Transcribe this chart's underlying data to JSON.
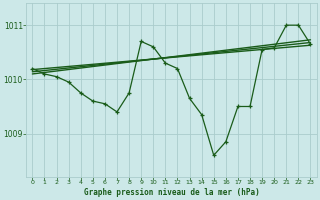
{
  "title": "Graphe pression niveau de la mer (hPa)",
  "bg_color": "#cce8e8",
  "grid_color": "#aacccc",
  "line_color": "#1a5c1a",
  "x_ticks": [
    0,
    1,
    2,
    3,
    4,
    5,
    6,
    7,
    8,
    9,
    10,
    11,
    12,
    13,
    14,
    15,
    16,
    17,
    18,
    19,
    20,
    21,
    22,
    23
  ],
  "y_ticks": [
    1009,
    1010,
    1011
  ],
  "ylim": [
    1008.2,
    1011.4
  ],
  "xlim": [
    -0.5,
    23.5
  ],
  "main_line": [
    [
      0,
      1010.2
    ],
    [
      1,
      1010.1
    ],
    [
      2,
      1010.05
    ],
    [
      3,
      1009.95
    ],
    [
      4,
      1009.75
    ],
    [
      5,
      1009.6
    ],
    [
      6,
      1009.55
    ],
    [
      7,
      1009.4
    ],
    [
      8,
      1009.75
    ],
    [
      9,
      1010.7
    ],
    [
      10,
      1010.6
    ],
    [
      11,
      1010.3
    ],
    [
      12,
      1010.2
    ],
    [
      13,
      1009.65
    ],
    [
      14,
      1009.35
    ],
    [
      15,
      1008.6
    ],
    [
      16,
      1008.85
    ],
    [
      17,
      1009.5
    ],
    [
      18,
      1009.5
    ],
    [
      19,
      1010.55
    ],
    [
      20,
      1010.58
    ],
    [
      21,
      1011.0
    ],
    [
      22,
      1011.0
    ],
    [
      23,
      1010.65
    ]
  ],
  "trend_line1": [
    [
      0,
      1010.18
    ],
    [
      23,
      1010.63
    ]
  ],
  "trend_line2": [
    [
      0,
      1010.14
    ],
    [
      23,
      1010.68
    ]
  ],
  "trend_line3": [
    [
      0,
      1010.1
    ],
    [
      23,
      1010.73
    ]
  ]
}
